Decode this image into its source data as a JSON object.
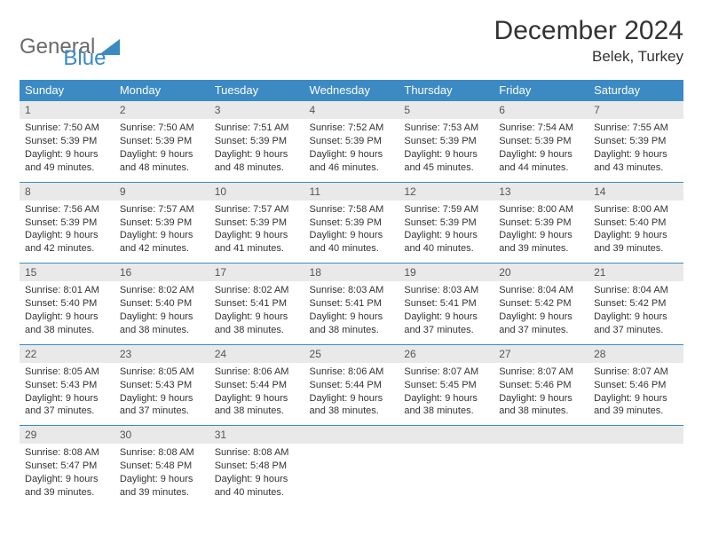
{
  "brand": {
    "name1": "General",
    "name2": "Blue"
  },
  "title": "December 2024",
  "location": "Belek, Turkey",
  "colors": {
    "header_bg": "#3b8ac4",
    "header_text": "#ffffff",
    "daynum_bg": "#e9e9e9",
    "border": "#3b8ac4",
    "logo_gray": "#6b6b6b",
    "logo_blue": "#3b8ac4",
    "text": "#333333"
  },
  "weekdays": [
    "Sunday",
    "Monday",
    "Tuesday",
    "Wednesday",
    "Thursday",
    "Friday",
    "Saturday"
  ],
  "days": [
    {
      "n": "1",
      "sunrise": "7:50 AM",
      "sunset": "5:39 PM",
      "d1": "Daylight: 9 hours",
      "d2": "and 49 minutes."
    },
    {
      "n": "2",
      "sunrise": "7:50 AM",
      "sunset": "5:39 PM",
      "d1": "Daylight: 9 hours",
      "d2": "and 48 minutes."
    },
    {
      "n": "3",
      "sunrise": "7:51 AM",
      "sunset": "5:39 PM",
      "d1": "Daylight: 9 hours",
      "d2": "and 48 minutes."
    },
    {
      "n": "4",
      "sunrise": "7:52 AM",
      "sunset": "5:39 PM",
      "d1": "Daylight: 9 hours",
      "d2": "and 46 minutes."
    },
    {
      "n": "5",
      "sunrise": "7:53 AM",
      "sunset": "5:39 PM",
      "d1": "Daylight: 9 hours",
      "d2": "and 45 minutes."
    },
    {
      "n": "6",
      "sunrise": "7:54 AM",
      "sunset": "5:39 PM",
      "d1": "Daylight: 9 hours",
      "d2": "and 44 minutes."
    },
    {
      "n": "7",
      "sunrise": "7:55 AM",
      "sunset": "5:39 PM",
      "d1": "Daylight: 9 hours",
      "d2": "and 43 minutes."
    },
    {
      "n": "8",
      "sunrise": "7:56 AM",
      "sunset": "5:39 PM",
      "d1": "Daylight: 9 hours",
      "d2": "and 42 minutes."
    },
    {
      "n": "9",
      "sunrise": "7:57 AM",
      "sunset": "5:39 PM",
      "d1": "Daylight: 9 hours",
      "d2": "and 42 minutes."
    },
    {
      "n": "10",
      "sunrise": "7:57 AM",
      "sunset": "5:39 PM",
      "d1": "Daylight: 9 hours",
      "d2": "and 41 minutes."
    },
    {
      "n": "11",
      "sunrise": "7:58 AM",
      "sunset": "5:39 PM",
      "d1": "Daylight: 9 hours",
      "d2": "and 40 minutes."
    },
    {
      "n": "12",
      "sunrise": "7:59 AM",
      "sunset": "5:39 PM",
      "d1": "Daylight: 9 hours",
      "d2": "and 40 minutes."
    },
    {
      "n": "13",
      "sunrise": "8:00 AM",
      "sunset": "5:39 PM",
      "d1": "Daylight: 9 hours",
      "d2": "and 39 minutes."
    },
    {
      "n": "14",
      "sunrise": "8:00 AM",
      "sunset": "5:40 PM",
      "d1": "Daylight: 9 hours",
      "d2": "and 39 minutes."
    },
    {
      "n": "15",
      "sunrise": "8:01 AM",
      "sunset": "5:40 PM",
      "d1": "Daylight: 9 hours",
      "d2": "and 38 minutes."
    },
    {
      "n": "16",
      "sunrise": "8:02 AM",
      "sunset": "5:40 PM",
      "d1": "Daylight: 9 hours",
      "d2": "and 38 minutes."
    },
    {
      "n": "17",
      "sunrise": "8:02 AM",
      "sunset": "5:41 PM",
      "d1": "Daylight: 9 hours",
      "d2": "and 38 minutes."
    },
    {
      "n": "18",
      "sunrise": "8:03 AM",
      "sunset": "5:41 PM",
      "d1": "Daylight: 9 hours",
      "d2": "and 38 minutes."
    },
    {
      "n": "19",
      "sunrise": "8:03 AM",
      "sunset": "5:41 PM",
      "d1": "Daylight: 9 hours",
      "d2": "and 37 minutes."
    },
    {
      "n": "20",
      "sunrise": "8:04 AM",
      "sunset": "5:42 PM",
      "d1": "Daylight: 9 hours",
      "d2": "and 37 minutes."
    },
    {
      "n": "21",
      "sunrise": "8:04 AM",
      "sunset": "5:42 PM",
      "d1": "Daylight: 9 hours",
      "d2": "and 37 minutes."
    },
    {
      "n": "22",
      "sunrise": "8:05 AM",
      "sunset": "5:43 PM",
      "d1": "Daylight: 9 hours",
      "d2": "and 37 minutes."
    },
    {
      "n": "23",
      "sunrise": "8:05 AM",
      "sunset": "5:43 PM",
      "d1": "Daylight: 9 hours",
      "d2": "and 37 minutes."
    },
    {
      "n": "24",
      "sunrise": "8:06 AM",
      "sunset": "5:44 PM",
      "d1": "Daylight: 9 hours",
      "d2": "and 38 minutes."
    },
    {
      "n": "25",
      "sunrise": "8:06 AM",
      "sunset": "5:44 PM",
      "d1": "Daylight: 9 hours",
      "d2": "and 38 minutes."
    },
    {
      "n": "26",
      "sunrise": "8:07 AM",
      "sunset": "5:45 PM",
      "d1": "Daylight: 9 hours",
      "d2": "and 38 minutes."
    },
    {
      "n": "27",
      "sunrise": "8:07 AM",
      "sunset": "5:46 PM",
      "d1": "Daylight: 9 hours",
      "d2": "and 38 minutes."
    },
    {
      "n": "28",
      "sunrise": "8:07 AM",
      "sunset": "5:46 PM",
      "d1": "Daylight: 9 hours",
      "d2": "and 39 minutes."
    },
    {
      "n": "29",
      "sunrise": "8:08 AM",
      "sunset": "5:47 PM",
      "d1": "Daylight: 9 hours",
      "d2": "and 39 minutes."
    },
    {
      "n": "30",
      "sunrise": "8:08 AM",
      "sunset": "5:48 PM",
      "d1": "Daylight: 9 hours",
      "d2": "and 39 minutes."
    },
    {
      "n": "31",
      "sunrise": "8:08 AM",
      "sunset": "5:48 PM",
      "d1": "Daylight: 9 hours",
      "d2": "and 40 minutes."
    }
  ],
  "labels": {
    "sunrise": "Sunrise: ",
    "sunset": "Sunset: "
  }
}
